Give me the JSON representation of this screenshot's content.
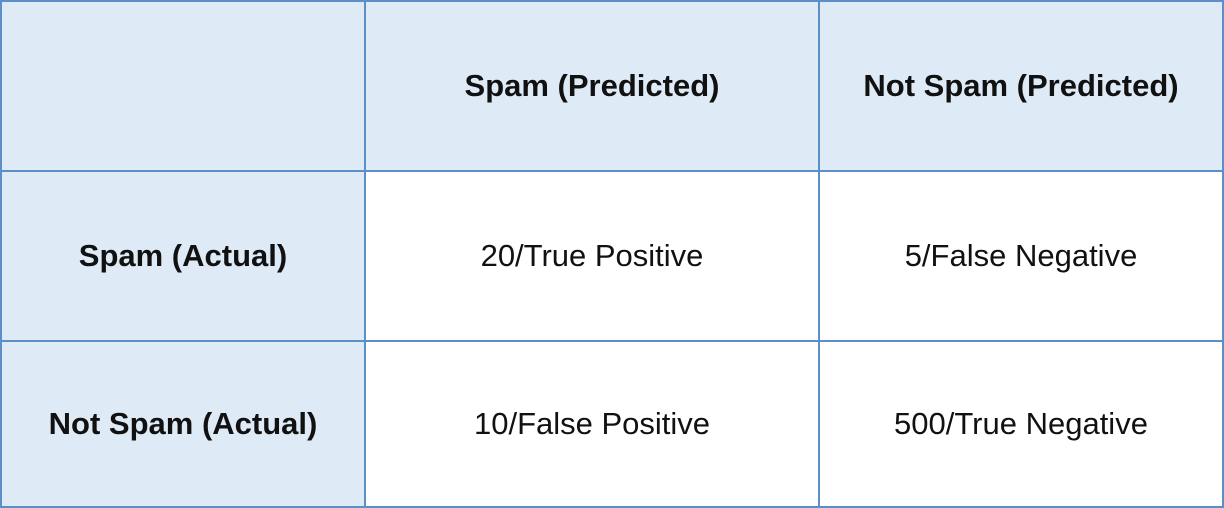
{
  "chart_data": {
    "type": "table",
    "corner": "",
    "columns": [
      "Spam (Predicted)",
      "Not Spam (Predicted)"
    ],
    "rows": [
      {
        "label": "Spam (Actual)",
        "cells": [
          "20/True Positive",
          "5/False Negative"
        ]
      },
      {
        "label": "Not Spam (Actual)",
        "cells": [
          "10/False Positive",
          "500/True Negative"
        ]
      }
    ]
  },
  "colors": {
    "border": "#5b8fc7",
    "header_fill": "#deebf7",
    "cell_fill": "#ffffff"
  }
}
